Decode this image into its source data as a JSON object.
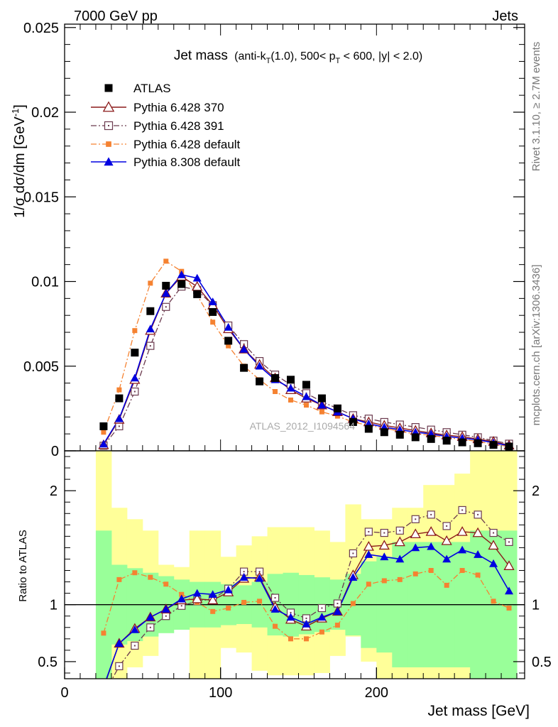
{
  "header": {
    "left": "7000 GeV pp",
    "right": "Jets"
  },
  "side_labels": {
    "rivet": "Rivet 3.1.10, ≥ 2.7M events",
    "mcplots": "mcplots.cern.ch [arXiv:1306.3436]"
  },
  "watermark": "ATLAS_2012_I1094564",
  "title": {
    "main": "Jet mass",
    "p1": "(anti-k",
    "p1sub": "T",
    "p2": "(1.0), 500< p",
    "p2sub": "T",
    "p3": " < 600, |y| < 2.0)"
  },
  "ylabel_main": {
    "text": "1/σ dσ/dm [GeV",
    "sup": "-1",
    "close": "]"
  },
  "ylabel_ratio": "Ratio to ATLAS",
  "xlabel": "Jet mass [GeV]",
  "colors": {
    "atlas": "#000000",
    "py370": "#8b1a1a",
    "py391": "#6b3a4e",
    "py6def": "#f58231",
    "py8def": "#0000e0",
    "band_inner": "#99ff99",
    "band_outer": "#ffff99"
  },
  "chart_data": [
    {
      "type": "scatter",
      "xlim": [
        0,
        295
      ],
      "ylim": [
        0,
        0.0252
      ],
      "yticks": [
        0,
        0.005,
        0.01,
        0.015,
        0.02,
        0.025
      ],
      "ytick_labels": [
        "0",
        "0.005",
        "0.01",
        "0.015",
        "0.02",
        "0.025"
      ],
      "xticks": [
        0,
        100,
        200
      ],
      "xtick_labels": [
        "0",
        "100",
        "200"
      ],
      "x": [
        25,
        35,
        45,
        55,
        65,
        75,
        85,
        95,
        105,
        115,
        125,
        135,
        145,
        155,
        165,
        175,
        185,
        195,
        205,
        215,
        225,
        235,
        245,
        255,
        265,
        275,
        285
      ],
      "series": [
        {
          "name": "ATLAS",
          "key": "atlas",
          "style": "data",
          "values": [
            0.00145,
            0.0031,
            0.0058,
            0.00825,
            0.00975,
            0.00985,
            0.00925,
            0.0082,
            0.0065,
            0.0049,
            0.0041,
            0.0043,
            0.0042,
            0.0039,
            0.0031,
            0.0025,
            0.0017,
            0.0013,
            0.0011,
            0.00095,
            0.0008,
            0.0007,
            0.0006,
            0.0005,
            0.00045,
            0.00035,
            0.00025
          ]
        },
        {
          "name": "Pythia 6.428 370",
          "key": "py370",
          "style": "tri_open",
          "values": [
            0.00035,
            0.00185,
            0.0042,
            0.0071,
            0.0093,
            0.0103,
            0.0097,
            0.0086,
            0.0072,
            0.006,
            0.0051,
            0.0043,
            0.0036,
            0.0031,
            0.0027,
            0.0023,
            0.0019,
            0.0017,
            0.0015,
            0.00135,
            0.0012,
            0.00105,
            0.00093,
            0.00083,
            0.0007,
            0.00055,
            0.00033
          ]
        },
        {
          "name": "Pythia 6.428 391",
          "key": "py391",
          "style": "sq_open",
          "values": [
            0.0003,
            0.00145,
            0.0035,
            0.0062,
            0.0085,
            0.0097,
            0.0095,
            0.0086,
            0.0074,
            0.0063,
            0.0053,
            0.0045,
            0.0039,
            0.0034,
            0.0029,
            0.0025,
            0.0021,
            0.0019,
            0.0017,
            0.00155,
            0.0014,
            0.00125,
            0.0011,
            0.00095,
            0.0008,
            0.0006,
            0.00042
          ]
        },
        {
          "name": "Pythia 6.428 default",
          "key": "py6def",
          "style": "sq_filled_small",
          "values": [
            0.0011,
            0.0036,
            0.0071,
            0.0099,
            0.0112,
            0.0106,
            0.0092,
            0.0076,
            0.0062,
            0.005,
            0.0042,
            0.0035,
            0.003,
            0.0027,
            0.0023,
            0.00205,
            0.0017,
            0.0015,
            0.00135,
            0.00115,
            0.001,
            0.00092,
            0.00078,
            0.00068,
            0.00055,
            0.0004,
            0.00025
          ]
        },
        {
          "name": "Pythia 8.308 default",
          "key": "py8def",
          "style": "tri_filled",
          "values": [
            0.0004,
            0.0019,
            0.0043,
            0.0072,
            0.0093,
            0.0104,
            0.0102,
            0.0088,
            0.0073,
            0.006,
            0.005,
            0.0042,
            0.0037,
            0.0032,
            0.0027,
            0.0023,
            0.0019,
            0.0016,
            0.0014,
            0.00125,
            0.0011,
            0.001,
            0.00085,
            0.00075,
            0.00065,
            0.00048,
            0.0003
          ]
        }
      ]
    },
    {
      "type": "line",
      "xlim": [
        0,
        295
      ],
      "ylim": [
        0.35,
        2.35
      ],
      "yticks": [
        0.5,
        1,
        2
      ],
      "ytick_labels": [
        "0.5",
        "1",
        "2"
      ],
      "xticks": [
        0,
        100,
        200
      ],
      "xtick_labels": [
        "0",
        "100",
        "200"
      ],
      "reference_line": 1,
      "bins": [
        20,
        30,
        40,
        50,
        60,
        70,
        80,
        90,
        100,
        110,
        120,
        130,
        140,
        150,
        160,
        170,
        180,
        190,
        200,
        210,
        220,
        230,
        240,
        250,
        260,
        270,
        280,
        290
      ],
      "band_inner": {
        "lo": [
          0.35,
          0.65,
          0.68,
          0.72,
          0.75,
          0.78,
          0.8,
          0.8,
          0.82,
          0.83,
          0.8,
          0.73,
          0.72,
          0.74,
          0.76,
          0.78,
          0.73,
          0.62,
          0.58,
          0.45,
          0.45,
          0.45,
          0.45,
          0.45,
          0.35,
          0.35,
          0.35
        ],
        "hi": [
          1.65,
          1.35,
          1.32,
          1.28,
          1.25,
          1.22,
          1.2,
          1.2,
          1.18,
          1.17,
          1.2,
          1.27,
          1.28,
          1.26,
          1.24,
          1.22,
          1.27,
          1.38,
          1.42,
          1.55,
          1.55,
          1.55,
          1.55,
          1.55,
          1.65,
          1.65,
          1.65
        ]
      },
      "band_outer": {
        "lo": [
          0.35,
          0.35,
          0.45,
          0.55,
          0.78,
          0.79,
          0.35,
          0.35,
          0.62,
          0.58,
          0.42,
          0.38,
          0.38,
          0.38,
          0.4,
          0.55,
          0.72,
          0.5,
          0.35,
          0.35,
          0.35,
          0.35,
          0.35,
          0.35,
          0.35,
          0.35,
          0.35
        ],
        "hi": [
          2.35,
          1.85,
          1.75,
          1.65,
          1.35,
          1.33,
          1.65,
          1.65,
          1.42,
          1.52,
          1.6,
          1.68,
          1.68,
          1.68,
          1.65,
          1.55,
          1.88,
          1.75,
          1.75,
          1.85,
          1.85,
          2.05,
          2.05,
          2.15,
          2.35,
          2.35,
          2.35
        ]
      },
      "x": [
        25,
        35,
        45,
        55,
        65,
        75,
        85,
        95,
        105,
        115,
        125,
        135,
        145,
        155,
        165,
        175,
        185,
        195,
        205,
        215,
        225,
        235,
        245,
        255,
        265,
        275,
        285
      ],
      "series": [
        {
          "name": "Pythia 6.428 370",
          "key": "py370",
          "style": "tri_open",
          "values": [
            0.27,
            0.66,
            0.79,
            0.89,
            0.96,
            1.04,
            1.05,
            1.04,
            1.11,
            1.23,
            1.24,
            0.98,
            0.87,
            0.81,
            0.88,
            0.94,
            1.26,
            1.51,
            1.52,
            1.55,
            1.62,
            1.64,
            1.56,
            1.64,
            1.63,
            1.52,
            1.34
          ]
        },
        {
          "name": "Pythia 6.428 391",
          "key": "py391",
          "style": "sq_open",
          "values": [
            0.21,
            0.46,
            0.64,
            0.8,
            0.9,
            0.99,
            1.03,
            1.05,
            1.14,
            1.29,
            1.29,
            1.06,
            0.93,
            0.88,
            0.97,
            1.01,
            1.45,
            1.64,
            1.63,
            1.65,
            1.75,
            1.79,
            1.69,
            1.83,
            1.79,
            1.63,
            1.55
          ]
        },
        {
          "name": "Pythia 6.428 default",
          "key": "py6def",
          "style": "sq_filled_small",
          "values": [
            0.75,
            1.22,
            1.28,
            1.24,
            1.18,
            1.09,
            1.02,
            0.94,
            0.97,
            1.02,
            1.03,
            0.81,
            0.7,
            0.7,
            0.76,
            0.82,
            1.01,
            1.18,
            1.21,
            1.22,
            1.27,
            1.3,
            1.17,
            1.3,
            1.26,
            1.03,
            0.97
          ]
        },
        {
          "name": "Pythia 8.308 default",
          "key": "py8def",
          "style": "tri_filled",
          "values": [
            0.28,
            0.66,
            0.78,
            0.89,
            0.96,
            1.05,
            1.1,
            1.09,
            1.13,
            1.24,
            1.23,
            0.96,
            0.89,
            0.83,
            0.89,
            0.94,
            1.24,
            1.44,
            1.42,
            1.4,
            1.5,
            1.51,
            1.4,
            1.48,
            1.44,
            1.36,
            1.12
          ]
        }
      ]
    }
  ]
}
